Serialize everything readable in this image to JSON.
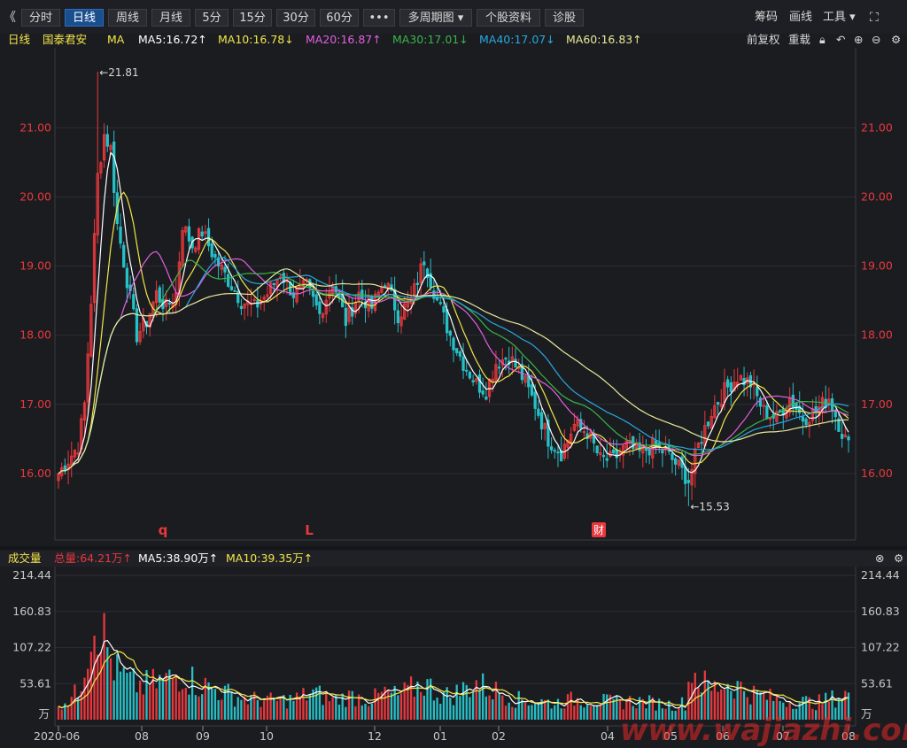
{
  "toolbar": {
    "back_glyph": "《",
    "periods": [
      {
        "label": "分时",
        "active": false
      },
      {
        "label": "日线",
        "active": true
      },
      {
        "label": "周线",
        "active": false
      },
      {
        "label": "月线",
        "active": false
      },
      {
        "label": "5分",
        "active": false
      },
      {
        "label": "15分",
        "active": false
      },
      {
        "label": "30分",
        "active": false
      },
      {
        "label": "60分",
        "active": false
      },
      {
        "label": "•••",
        "active": false
      },
      {
        "label": "多周期图 ▾",
        "active": false
      },
      {
        "label": "个股资料",
        "active": false
      },
      {
        "label": "诊股",
        "active": false
      }
    ],
    "chip_label": "筹码",
    "draw_label": "画线",
    "tools_label": "工具 ▾",
    "fullscreen_glyph": "⛶"
  },
  "main_header": {
    "period": "日线",
    "stock_name": "国泰君安",
    "indicator": "MA",
    "ma": [
      {
        "text": "MA5:16.72↑",
        "color": "#ffffff"
      },
      {
        "text": "MA10:16.78↓",
        "color": "#f2e64a"
      },
      {
        "text": "MA20:16.87↑",
        "color": "#e060e0"
      },
      {
        "text": "MA30:17.01↓",
        "color": "#39b54a"
      },
      {
        "text": "MA40:17.07↓",
        "color": "#28a8e0"
      },
      {
        "text": "MA60:16.83↑",
        "color": "#e8e89a"
      }
    ],
    "adjust_label": "前复权",
    "reload_label": "重载"
  },
  "price_axis": {
    "min": 15.5,
    "max": 21.9,
    "ticks": [
      "21.00",
      "20.00",
      "19.00",
      "18.00",
      "17.00",
      "16.00"
    ],
    "tick_values": [
      21,
      20,
      19,
      18,
      17,
      16
    ],
    "high_label": "←21.81",
    "low_label": "←15.53",
    "markers": [
      {
        "text": "q",
        "kind": "letter"
      },
      {
        "text": "L",
        "kind": "letter"
      },
      {
        "text": "财",
        "kind": "badge"
      }
    ]
  },
  "volume_header": {
    "title": "成交量",
    "total": "总量:64.21万↑",
    "ma5": "MA5:38.90万↑",
    "ma10": "MA10:39.35万↑"
  },
  "volume_axis": {
    "max": 214.44,
    "ticks": [
      "214.44",
      "160.83",
      "107.22",
      "53.61"
    ],
    "tick_values": [
      214.44,
      160.83,
      107.22,
      53.61
    ],
    "unit": "万"
  },
  "x_axis": {
    "labels": [
      "2020-06",
      "08",
      "09",
      "10",
      "12",
      "01",
      "02",
      "04",
      "05",
      "06",
      "07",
      "08"
    ]
  },
  "colors": {
    "up": "#e8383d",
    "down": "#26c0c7",
    "grid": "#2c2d33",
    "axis_text_red": "#e8383d",
    "axis_text": "#c8c8c8"
  },
  "watermark": "www.wajiazhi.com",
  "chart_data": {
    "type": "candlestick",
    "title": "国泰君安 日线",
    "x_labels": [
      "2020-06",
      "08",
      "09",
      "10",
      "12",
      "01",
      "02",
      "04",
      "05",
      "06",
      "07",
      "08"
    ],
    "price_anchors": [
      [
        0,
        16.0
      ],
      [
        3,
        16.2
      ],
      [
        6,
        16.4
      ],
      [
        8,
        17.0
      ],
      [
        10,
        18.5
      ],
      [
        12,
        20.3
      ],
      [
        14,
        20.9
      ],
      [
        16,
        20.7
      ],
      [
        18,
        19.6
      ],
      [
        21,
        18.8
      ],
      [
        24,
        18.0
      ],
      [
        27,
        18.2
      ],
      [
        30,
        18.6
      ],
      [
        33,
        18.4
      ],
      [
        36,
        18.6
      ],
      [
        38,
        19.6
      ],
      [
        41,
        19.3
      ],
      [
        44,
        19.5
      ],
      [
        48,
        19.1
      ],
      [
        52,
        18.8
      ],
      [
        56,
        18.5
      ],
      [
        60,
        18.4
      ],
      [
        64,
        18.6
      ],
      [
        68,
        18.9
      ],
      [
        72,
        18.6
      ],
      [
        76,
        18.7
      ],
      [
        80,
        18.3
      ],
      [
        84,
        18.8
      ],
      [
        88,
        18.2
      ],
      [
        92,
        18.6
      ],
      [
        96,
        18.4
      ],
      [
        100,
        18.8
      ],
      [
        104,
        18.3
      ],
      [
        108,
        18.5
      ],
      [
        112,
        19.1
      ],
      [
        116,
        18.5
      ],
      [
        120,
        18.0
      ],
      [
        124,
        17.6
      ],
      [
        128,
        17.3
      ],
      [
        131,
        17.2
      ],
      [
        134,
        17.6
      ],
      [
        138,
        17.7
      ],
      [
        142,
        17.4
      ],
      [
        146,
        17.0
      ],
      [
        150,
        16.5
      ],
      [
        154,
        16.3
      ],
      [
        158,
        16.7
      ],
      [
        162,
        16.6
      ],
      [
        166,
        16.2
      ],
      [
        170,
        16.2
      ],
      [
        174,
        16.4
      ],
      [
        178,
        16.3
      ],
      [
        182,
        16.4
      ],
      [
        186,
        16.3
      ],
      [
        190,
        16.1
      ],
      [
        193,
        15.9
      ],
      [
        196,
        16.4
      ],
      [
        200,
        16.9
      ],
      [
        204,
        17.2
      ],
      [
        208,
        17.4
      ],
      [
        212,
        17.3
      ],
      [
        216,
        16.9
      ],
      [
        220,
        16.8
      ],
      [
        224,
        17.1
      ],
      [
        228,
        16.8
      ],
      [
        232,
        16.9
      ],
      [
        236,
        17.1
      ],
      [
        240,
        16.6
      ],
      [
        242,
        16.4
      ]
    ],
    "volume_anchors": [
      [
        0,
        25
      ],
      [
        3,
        30
      ],
      [
        6,
        40
      ],
      [
        8,
        90
      ],
      [
        10,
        140
      ],
      [
        12,
        160
      ],
      [
        14,
        120
      ],
      [
        16,
        90
      ],
      [
        18,
        70
      ],
      [
        22,
        55
      ],
      [
        26,
        50
      ],
      [
        30,
        55
      ],
      [
        34,
        60
      ],
      [
        38,
        70
      ],
      [
        42,
        55
      ],
      [
        48,
        45
      ],
      [
        54,
        35
      ],
      [
        60,
        30
      ],
      [
        66,
        28
      ],
      [
        72,
        30
      ],
      [
        78,
        40
      ],
      [
        84,
        30
      ],
      [
        90,
        35
      ],
      [
        96,
        30
      ],
      [
        100,
        40
      ],
      [
        104,
        35
      ],
      [
        108,
        45
      ],
      [
        112,
        55
      ],
      [
        116,
        40
      ],
      [
        120,
        35
      ],
      [
        124,
        45
      ],
      [
        128,
        55
      ],
      [
        132,
        45
      ],
      [
        136,
        40
      ],
      [
        140,
        30
      ],
      [
        146,
        28
      ],
      [
        152,
        25
      ],
      [
        158,
        30
      ],
      [
        164,
        30
      ],
      [
        170,
        25
      ],
      [
        176,
        28
      ],
      [
        182,
        25
      ],
      [
        188,
        22
      ],
      [
        192,
        25
      ],
      [
        194,
        80
      ],
      [
        196,
        60
      ],
      [
        200,
        45
      ],
      [
        204,
        55
      ],
      [
        208,
        50
      ],
      [
        212,
        40
      ],
      [
        216,
        35
      ],
      [
        220,
        30
      ],
      [
        226,
        28
      ],
      [
        232,
        25
      ],
      [
        236,
        30
      ],
      [
        240,
        35
      ],
      [
        242,
        40
      ]
    ],
    "annotations": [
      {
        "text": "21.81",
        "type": "high",
        "value": 21.81,
        "index": 12
      },
      {
        "text": "15.53",
        "type": "low",
        "value": 15.53,
        "index": 193
      }
    ]
  }
}
